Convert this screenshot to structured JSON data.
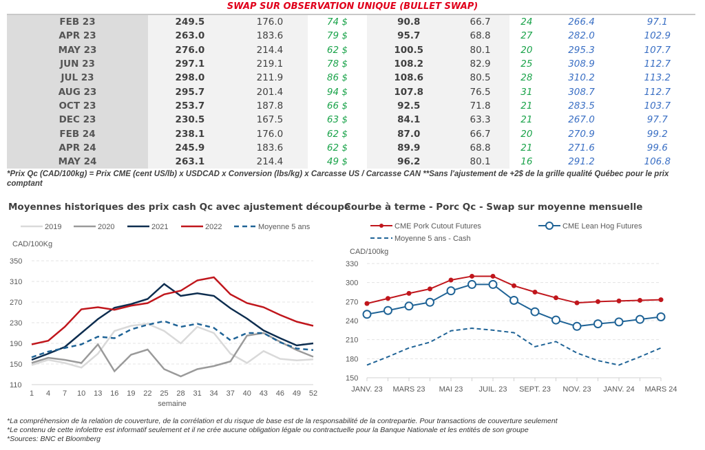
{
  "title": "SWAP SUR OBSERVATION UNIQUE (BULLET SWAP)",
  "table": {
    "rows": [
      [
        "FEB 23",
        "249.5",
        "176.0",
        "74 $",
        "90.8",
        "66.7",
        "24",
        "266.4",
        "97.1"
      ],
      [
        "APR 23",
        "263.0",
        "183.6",
        "79 $",
        "95.7",
        "68.8",
        "27",
        "282.0",
        "102.9"
      ],
      [
        "MAY 23",
        "276.0",
        "214.4",
        "62 $",
        "100.5",
        "80.1",
        "20",
        "295.3",
        "107.7"
      ],
      [
        "JUN 23",
        "297.1",
        "219.1",
        "78 $",
        "108.2",
        "82.9",
        "25",
        "308.9",
        "112.7"
      ],
      [
        "JUL 23",
        "298.0",
        "211.9",
        "86 $",
        "108.6",
        "80.5",
        "28",
        "310.2",
        "113.2"
      ],
      [
        "AUG 23",
        "295.7",
        "201.4",
        "94 $",
        "107.8",
        "76.5",
        "31",
        "308.7",
        "112.7"
      ],
      [
        "OCT 23",
        "253.7",
        "187.8",
        "66 $",
        "92.5",
        "71.8",
        "21",
        "283.5",
        "103.7"
      ],
      [
        "DEC 23",
        "230.5",
        "167.5",
        "63 $",
        "84.1",
        "63.3",
        "21",
        "267.0",
        "97.7"
      ],
      [
        "FEB 24",
        "238.1",
        "176.0",
        "62 $",
        "87.0",
        "66.7",
        "20",
        "270.9",
        "99.2"
      ],
      [
        "APR 24",
        "245.9",
        "183.6",
        "62 $",
        "89.9",
        "68.8",
        "21",
        "271.6",
        "99.6"
      ],
      [
        "MAY 24",
        "263.1",
        "214.4",
        "49 $",
        "96.2",
        "80.1",
        "16",
        "291.2",
        "106.8"
      ]
    ]
  },
  "note": "*Prix Qc (CAD/100kg) = Prix CME (cent US/lb) x USDCAD x Conversion (lbs/kg) x Carcasse US / Carcasse CAN **Sans l'ajustement de +2$ de la grille qualité Québec pour le prix comptant",
  "footer": [
    "*La compréhension de la relation de couverture, de la corrélation et du risque de base est de la responsabilité de la contrepartie. Pour transactions de couverture seulement",
    "*Le contenu de cette infolettre est informatif seulement et il ne crée aucune obligation légale ou contractuelle pour la Banque Nationale et les entités de son groupe",
    "*Sources: BNC et Bloomberg"
  ],
  "colors": {
    "red": "#c0161c",
    "navy": "#0d2d4f",
    "blue": "#1f6396",
    "grey": "#9a9a9a",
    "lightgrey": "#d9d9d9"
  },
  "chart_data": [
    {
      "type": "line",
      "title": "Moyennes historiques des prix cash Qc avec ajustement découpe",
      "ylabel": "CAD/100Kg",
      "xlabel": "semaine",
      "ylim": [
        110,
        350
      ],
      "yticks": [
        110,
        150,
        190,
        230,
        270,
        310,
        350
      ],
      "x": [
        1,
        4,
        7,
        10,
        13,
        16,
        19,
        22,
        25,
        28,
        31,
        34,
        37,
        40,
        43,
        46,
        49,
        52
      ],
      "series": [
        {
          "name": "2019",
          "color": "#d9d9d9",
          "dash": false,
          "values": [
            148,
            158,
            152,
            143,
            170,
            214,
            224,
            228,
            214,
            190,
            222,
            210,
            170,
            152,
            175,
            160,
            157,
            159
          ]
        },
        {
          "name": "2020",
          "color": "#9a9a9a",
          "dash": false,
          "values": [
            152,
            162,
            158,
            152,
            188,
            136,
            168,
            178,
            140,
            126,
            140,
            146,
            155,
            205,
            210,
            193,
            177,
            164
          ]
        },
        {
          "name": "2021",
          "color": "#0d2d4f",
          "dash": false,
          "values": [
            158,
            170,
            183,
            210,
            237,
            259,
            266,
            276,
            305,
            282,
            287,
            282,
            258,
            238,
            215,
            200,
            186,
            190
          ]
        },
        {
          "name": "2022",
          "color": "#c0161c",
          "dash": false,
          "values": [
            188,
            195,
            222,
            256,
            260,
            255,
            263,
            268,
            285,
            292,
            312,
            318,
            285,
            268,
            260,
            245,
            232,
            224
          ]
        },
        {
          "name": "Moyenne 5 ans",
          "color": "#1f6396",
          "dash": true,
          "values": [
            163,
            174,
            181,
            188,
            203,
            200,
            217,
            226,
            233,
            222,
            228,
            220,
            196,
            210,
            210,
            192,
            180,
            177
          ]
        }
      ]
    },
    {
      "type": "line",
      "title": "Courbe à terme - Porc Qc - Swap sur moyenne mensuelle",
      "ylabel": "CAD/100kg",
      "ylim": [
        150,
        330
      ],
      "yticks": [
        150,
        180,
        210,
        240,
        270,
        300,
        330
      ],
      "xticklabels": [
        "JANV. 23",
        "MARS 23",
        "MAI 23",
        "JUIL. 23",
        "SEPT. 23",
        "NOV. 23",
        "JANV. 24",
        "MARS 24"
      ],
      "series": [
        {
          "name": "CME Pork Cutout Futures",
          "color": "#c0161c",
          "marker": "dot",
          "values": [
            267,
            275,
            283,
            290,
            304,
            310,
            310,
            295,
            285,
            276,
            268,
            270,
            271,
            272,
            273
          ]
        },
        {
          "name": "CME Lean Hog Futures",
          "color": "#1f6396",
          "marker": "circle",
          "values": [
            250,
            256,
            263,
            269,
            287,
            297,
            297,
            272,
            254,
            241,
            231,
            235,
            238,
            242,
            246
          ]
        },
        {
          "name": "Moyenne 5 ans - Cash",
          "color": "#1f6396",
          "marker": "none",
          "dash": true,
          "values": [
            170,
            183,
            197,
            206,
            224,
            228,
            225,
            221,
            199,
            207,
            189,
            177,
            170,
            183,
            197
          ]
        }
      ]
    }
  ]
}
